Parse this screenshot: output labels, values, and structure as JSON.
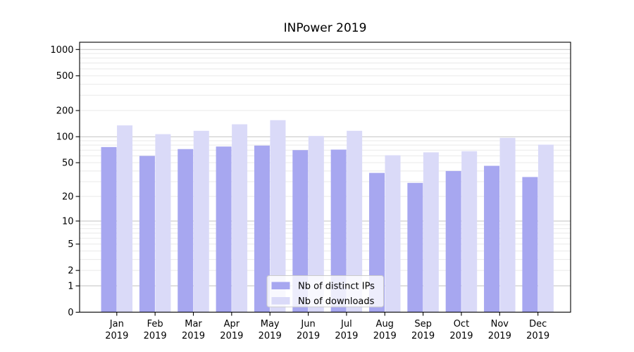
{
  "chart_data": {
    "type": "bar",
    "title": "INPower 2019",
    "categories": [
      "Jan 2019",
      "Feb 2019",
      "Mar 2019",
      "Apr 2019",
      "May 2019",
      "Jun 2019",
      "Jul 2019",
      "Aug 2019",
      "Sep 2019",
      "Oct 2019",
      "Nov 2019",
      "Dec 2019"
    ],
    "series": [
      {
        "name": "Nb of distinct IPs",
        "color": "#a7a7f0",
        "values": [
          76,
          60,
          72,
          77,
          79,
          70,
          71,
          38,
          29,
          40,
          46,
          34
        ]
      },
      {
        "name": "Nb of downloads",
        "color": "#dadaf8",
        "values": [
          135,
          107,
          117,
          139,
          155,
          102,
          117,
          61,
          66,
          68,
          97,
          81
        ]
      }
    ],
    "y_ticks": [
      0,
      1,
      2,
      5,
      10,
      20,
      50,
      100,
      200,
      500,
      1000
    ],
    "y_scale": "log10(value+1)",
    "ylim": [
      0,
      1000
    ],
    "grid": {
      "major_values": [
        1,
        10,
        100,
        1000
      ],
      "minor_values": [
        2,
        3,
        4,
        5,
        6,
        7,
        8,
        9,
        20,
        30,
        40,
        50,
        60,
        70,
        80,
        90,
        200,
        300,
        400,
        500,
        600,
        700,
        800,
        900
      ],
      "major_color": "#c2c2c2",
      "minor_color": "#e9e9e9"
    },
    "legend": {
      "position": "lower center"
    },
    "axis_color": "#000000"
  }
}
